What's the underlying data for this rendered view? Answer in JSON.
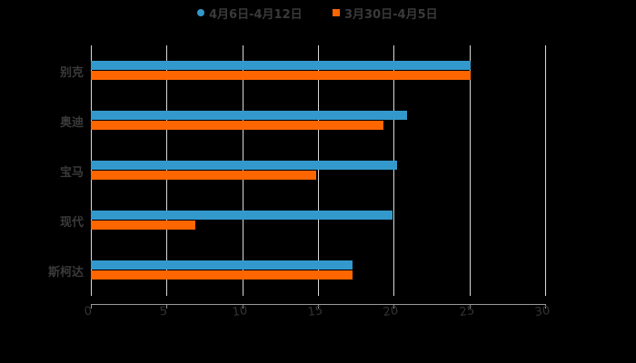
{
  "legend": [
    {
      "label": "4月6日-4月12日",
      "color": "#3399cc",
      "shape": "circle"
    },
    {
      "label": "3月30日-4月5日",
      "color": "#ff6600",
      "shape": "square"
    }
  ],
  "axis": {
    "ticks": [
      "0",
      "5",
      "10",
      "15",
      "20",
      "25",
      "30"
    ]
  },
  "categories": [
    "别克",
    "奥迪",
    "宝马",
    "现代",
    "斯柯达"
  ],
  "chart_data": {
    "type": "bar",
    "orientation": "horizontal",
    "title": "",
    "xlabel": "",
    "ylabel": "",
    "categories": [
      "别克",
      "奥迪",
      "宝马",
      "现代",
      "斯柯达"
    ],
    "series": [
      {
        "name": "4月6日-4月12日",
        "color": "#3399cc",
        "values": [
          25.1,
          20.9,
          20.2,
          19.9,
          17.3
        ]
      },
      {
        "name": "3月30日-4月5日",
        "color": "#ff6600",
        "values": [
          25.1,
          19.3,
          14.9,
          6.9,
          17.3
        ]
      }
    ],
    "xlim": [
      0,
      30
    ],
    "x_ticks": [
      0,
      5,
      10,
      15,
      20,
      25,
      30
    ],
    "grid": true,
    "legend_position": "top"
  }
}
